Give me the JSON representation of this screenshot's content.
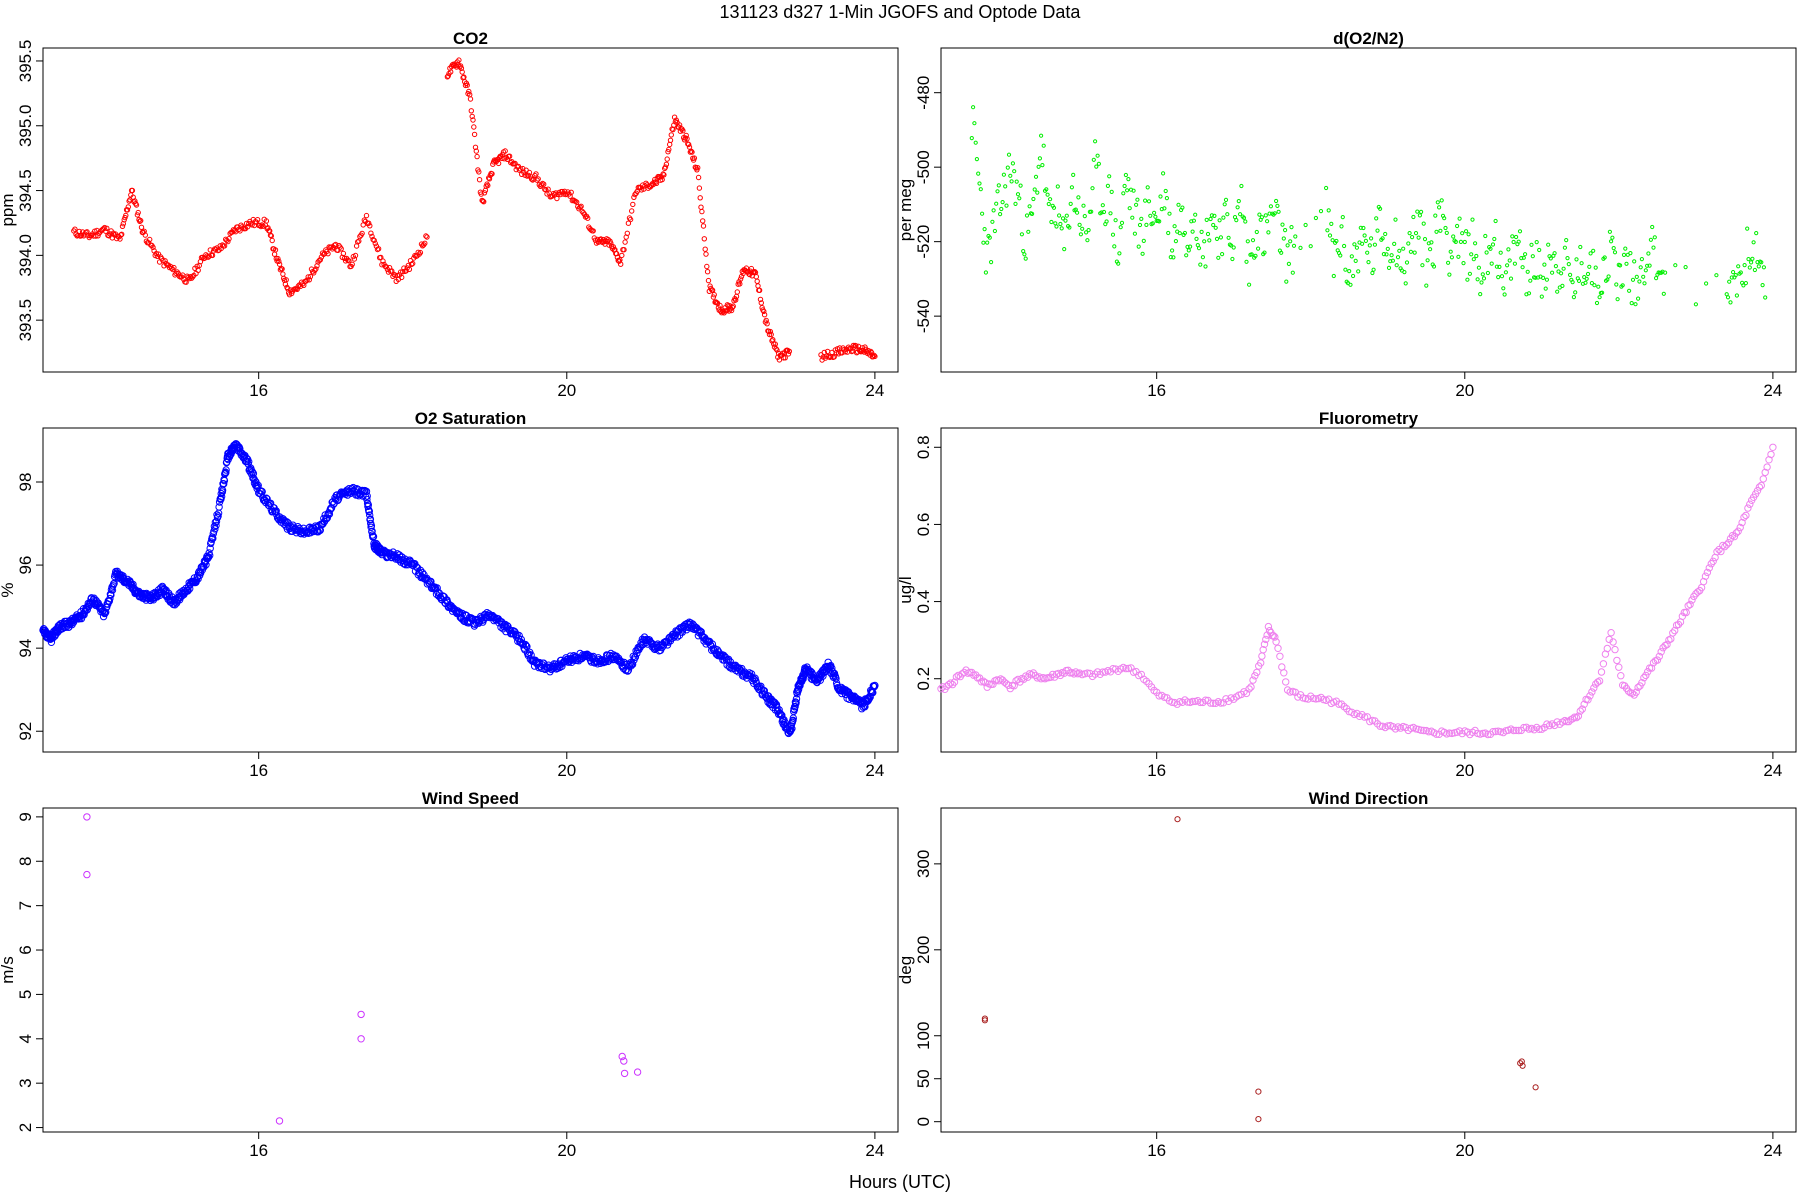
{
  "figure": {
    "title": "131123   d327   1-Min  JGOFS and Optode Data",
    "xlabel": "Hours (UTC)"
  },
  "chart_data": [
    {
      "type": "scatter",
      "title": "CO2",
      "ylabel": "ppm",
      "xlim": [
        13.2,
        24.3
      ],
      "ylim": [
        393.1,
        395.6
      ],
      "xticks": [
        16,
        20,
        24
      ],
      "yticks": [
        393.5,
        394.0,
        394.5,
        395.0,
        395.5
      ],
      "ytick_labels": [
        "393.5",
        "394.0",
        "394.5",
        "395.0",
        "395.5"
      ],
      "color": "#ff0000",
      "marker_size": 2.2,
      "series": [
        {
          "x": [
            13.6,
            13.8,
            14.0,
            14.2,
            14.35,
            14.5,
            14.7,
            14.9,
            15.1,
            15.3,
            15.5,
            15.7,
            15.9,
            16.1,
            16.25,
            16.4,
            16.6,
            16.8,
            17.0,
            17.2,
            17.4,
            17.6,
            17.8,
            18.0,
            18.2,
            18.35,
            18.45,
            18.6,
            18.75,
            18.9,
            19.05,
            19.2,
            19.4,
            19.6,
            19.8,
            20.0,
            20.2,
            20.4,
            20.55,
            20.7,
            20.9,
            21.1,
            21.25,
            21.4,
            21.55,
            21.7,
            21.85,
            22.0,
            22.15,
            22.3,
            22.45,
            22.6,
            22.75,
            22.9,
            23.0,
            23.1,
            23.3,
            23.5,
            23.7,
            23.85,
            24.0
          ],
          "y": [
            394.18,
            394.15,
            394.2,
            394.12,
            394.5,
            394.18,
            393.98,
            393.88,
            393.8,
            394.0,
            394.05,
            394.2,
            394.25,
            394.25,
            393.95,
            393.72,
            393.78,
            393.98,
            394.08,
            393.92,
            394.3,
            393.95,
            393.82,
            393.95,
            394.15,
            null,
            395.4,
            395.5,
            395.2,
            394.4,
            394.7,
            394.78,
            394.65,
            394.6,
            394.45,
            394.5,
            394.35,
            394.1,
            394.1,
            393.95,
            394.5,
            394.55,
            394.6,
            395.05,
            394.9,
            394.65,
            393.75,
            393.58,
            393.6,
            393.9,
            393.85,
            393.45,
            393.22,
            393.25,
            null,
            null,
            393.22,
            393.25,
            393.28,
            393.27,
            393.22
          ]
        }
      ]
    },
    {
      "type": "scatter",
      "title": "d(O2/N2)",
      "ylabel": "per meg",
      "xlim": [
        13.2,
        24.3
      ],
      "ylim": [
        -555,
        -468
      ],
      "xticks": [
        16,
        20,
        24
      ],
      "yticks": [
        -540,
        -520,
        -500,
        -480
      ],
      "ytick_labels": [
        "-540",
        "-520",
        "-500",
        "-480"
      ],
      "color": "#00ee00",
      "marker_size": 1.6,
      "series": [
        {
          "x": [
            13.6,
            13.7,
            13.8,
            13.9,
            14.0,
            14.1,
            14.2,
            14.3,
            14.4,
            14.5,
            14.6,
            14.7,
            14.8,
            14.9,
            15.0,
            15.1,
            15.2,
            15.3,
            15.4,
            15.5,
            15.6,
            15.7,
            15.8,
            15.9,
            16.0,
            16.1,
            16.2,
            16.3,
            16.4,
            16.5,
            16.6,
            16.7,
            16.8,
            16.9,
            17.0,
            17.1,
            17.2,
            17.3,
            17.4,
            17.5,
            17.6,
            17.7,
            17.8,
            18.2,
            18.3,
            18.4,
            18.5,
            18.6,
            18.7,
            18.8,
            18.9,
            19.0,
            19.1,
            19.2,
            19.3,
            19.4,
            19.5,
            19.6,
            19.7,
            19.8,
            19.9,
            20.0,
            20.1,
            20.2,
            20.3,
            20.4,
            20.5,
            20.6,
            20.7,
            20.8,
            20.9,
            21.0,
            21.1,
            21.2,
            21.3,
            21.4,
            21.5,
            21.6,
            21.7,
            21.8,
            21.9,
            22.0,
            22.1,
            22.2,
            22.3,
            22.4,
            22.5,
            22.6,
            23.4,
            23.5,
            23.6,
            23.7,
            23.8,
            23.9
          ],
          "y": [
            -487,
            -505,
            -525,
            -515,
            -508,
            -500,
            -507,
            -520,
            -512,
            -492,
            -515,
            -510,
            -522,
            -505,
            -513,
            -518,
            -500,
            -510,
            -508,
            -525,
            -503,
            -512,
            -518,
            -510,
            -515,
            -505,
            -522,
            -512,
            -518,
            -510,
            -525,
            -512,
            -518,
            -515,
            -520,
            -508,
            -528,
            -515,
            -520,
            -512,
            -518,
            -525,
            -520,
            -512,
            -525,
            -518,
            -530,
            -522,
            -520,
            -525,
            -515,
            -522,
            -518,
            -528,
            -520,
            -515,
            -525,
            -520,
            -510,
            -522,
            -518,
            -525,
            -520,
            -530,
            -522,
            -518,
            -535,
            -525,
            -520,
            -528,
            -525,
            -530,
            -522,
            -528,
            -525,
            -532,
            -528,
            -525,
            -530,
            -528,
            -522,
            -530,
            -525,
            -532,
            -528,
            -520,
            -525,
            -530,
            -535,
            -528,
            -530,
            -520,
            -525,
            -535
          ]
        }
      ]
    },
    {
      "type": "scatter",
      "title": "O2 Saturation",
      "ylabel": "%",
      "xlim": [
        13.2,
        24.3
      ],
      "ylim": [
        91.5,
        99.3
      ],
      "xticks": [
        16,
        20,
        24
      ],
      "yticks": [
        92,
        94,
        96,
        98
      ],
      "ytick_labels": [
        "92",
        "94",
        "96",
        "98"
      ],
      "color": "#0000ff",
      "marker_size": 3.2,
      "series": [
        {
          "x": [
            13.2,
            13.3,
            13.4,
            13.55,
            13.7,
            13.85,
            14.0,
            14.15,
            14.3,
            14.45,
            14.6,
            14.75,
            14.9,
            15.05,
            15.2,
            15.35,
            15.5,
            15.6,
            15.7,
            15.85,
            16.0,
            16.2,
            16.4,
            16.6,
            16.8,
            17.0,
            17.2,
            17.4,
            17.5,
            17.6,
            17.8,
            18.0,
            18.2,
            18.4,
            18.6,
            18.8,
            19.0,
            19.2,
            19.4,
            19.6,
            19.8,
            20.0,
            20.2,
            20.4,
            20.6,
            20.8,
            21.0,
            21.2,
            21.4,
            21.6,
            21.8,
            22.0,
            22.2,
            22.4,
            22.6,
            22.75,
            22.9,
            23.0,
            23.1,
            23.25,
            23.4,
            23.55,
            23.7,
            23.85,
            24.0
          ],
          "y": [
            94.4,
            94.2,
            94.5,
            94.6,
            94.8,
            95.2,
            94.8,
            95.8,
            95.6,
            95.3,
            95.2,
            95.4,
            95.1,
            95.4,
            95.7,
            96.2,
            97.5,
            98.6,
            98.9,
            98.5,
            97.8,
            97.3,
            96.9,
            96.8,
            96.9,
            97.6,
            97.8,
            97.7,
            96.5,
            96.3,
            96.2,
            96.0,
            95.6,
            95.2,
            94.8,
            94.6,
            94.8,
            94.5,
            94.2,
            93.6,
            93.5,
            93.7,
            93.8,
            93.7,
            93.8,
            93.5,
            94.2,
            94.0,
            94.3,
            94.6,
            94.2,
            93.8,
            93.5,
            93.3,
            92.8,
            92.5,
            91.9,
            93.0,
            93.5,
            93.2,
            93.6,
            93.0,
            92.8,
            92.6,
            93.1
          ]
        }
      ]
    },
    {
      "type": "scatter",
      "title": "Fluorometry",
      "ylabel": "ug/l",
      "xlim": [
        13.2,
        24.3
      ],
      "ylim": [
        0.01,
        0.85
      ],
      "xticks": [
        16,
        20,
        24
      ],
      "yticks": [
        0.2,
        0.4,
        0.6,
        0.8
      ],
      "ytick_labels": [
        "0.2",
        "0.4",
        "0.6",
        "0.8"
      ],
      "color": "#ee82ee",
      "marker_size": 3.2,
      "series": [
        {
          "x": [
            13.2,
            13.35,
            13.5,
            13.65,
            13.8,
            13.95,
            14.1,
            14.25,
            14.4,
            14.55,
            14.7,
            14.85,
            15.0,
            15.2,
            15.4,
            15.6,
            15.8,
            16.0,
            16.2,
            16.4,
            16.6,
            16.8,
            17.0,
            17.2,
            17.35,
            17.45,
            17.55,
            17.7,
            17.9,
            18.1,
            18.3,
            18.5,
            18.7,
            18.9,
            19.1,
            19.3,
            19.5,
            19.7,
            19.9,
            20.1,
            20.3,
            20.5,
            20.7,
            20.9,
            21.1,
            21.3,
            21.45,
            21.6,
            21.75,
            21.9,
            22.05,
            22.2,
            22.35,
            22.5,
            22.65,
            22.8,
            22.95,
            23.1,
            23.25,
            23.4,
            23.55,
            23.7,
            23.85,
            24.0
          ],
          "y": [
            0.17,
            0.19,
            0.22,
            0.21,
            0.18,
            0.2,
            0.18,
            0.2,
            0.21,
            0.2,
            0.21,
            0.22,
            0.21,
            0.21,
            0.22,
            0.23,
            0.21,
            0.16,
            0.14,
            0.14,
            0.14,
            0.14,
            0.15,
            0.17,
            0.24,
            0.33,
            0.3,
            0.17,
            0.15,
            0.15,
            0.14,
            0.12,
            0.1,
            0.08,
            0.07,
            0.07,
            0.06,
            0.06,
            0.06,
            0.06,
            0.06,
            0.06,
            0.07,
            0.07,
            0.08,
            0.09,
            0.1,
            0.15,
            0.2,
            0.32,
            0.18,
            0.16,
            0.21,
            0.25,
            0.3,
            0.35,
            0.4,
            0.45,
            0.52,
            0.55,
            0.58,
            0.65,
            0.7,
            0.8
          ]
        }
      ]
    },
    {
      "type": "scatter",
      "title": "Wind Speed",
      "ylabel": "m/s",
      "xlim": [
        13.2,
        24.3
      ],
      "ylim": [
        1.9,
        9.2
      ],
      "xticks": [
        16,
        20,
        24
      ],
      "yticks": [
        2,
        3,
        4,
        5,
        6,
        7,
        8,
        9
      ],
      "ytick_labels": [
        "2",
        "3",
        "4",
        "5",
        "6",
        "7",
        "8",
        "9"
      ],
      "color": "#cc33ff",
      "marker_size": 3.2,
      "series": [
        {
          "x": [
            13.77,
            13.77,
            16.27,
            17.33,
            17.33,
            20.72,
            20.74,
            20.75,
            20.92
          ],
          "y": [
            9.0,
            7.7,
            2.15,
            4.55,
            4.0,
            3.6,
            3.5,
            3.22,
            3.25
          ]
        }
      ]
    },
    {
      "type": "scatter",
      "title": "Wind Direction",
      "ylabel": "deg",
      "xlim": [
        13.2,
        24.3
      ],
      "ylim": [
        -12,
        365
      ],
      "xticks": [
        16,
        20,
        24
      ],
      "yticks": [
        0,
        50,
        100,
        200,
        300
      ],
      "ytick_labels": [
        "0",
        "50",
        "100",
        "200",
        "300"
      ],
      "color": "#aa2222",
      "marker_size": 2.6,
      "series": [
        {
          "x": [
            13.77,
            13.77,
            16.27,
            17.32,
            17.32,
            20.72,
            20.74,
            20.75,
            20.92
          ],
          "y": [
            120,
            118,
            352,
            35,
            3,
            68,
            70,
            65,
            40
          ]
        }
      ]
    }
  ]
}
